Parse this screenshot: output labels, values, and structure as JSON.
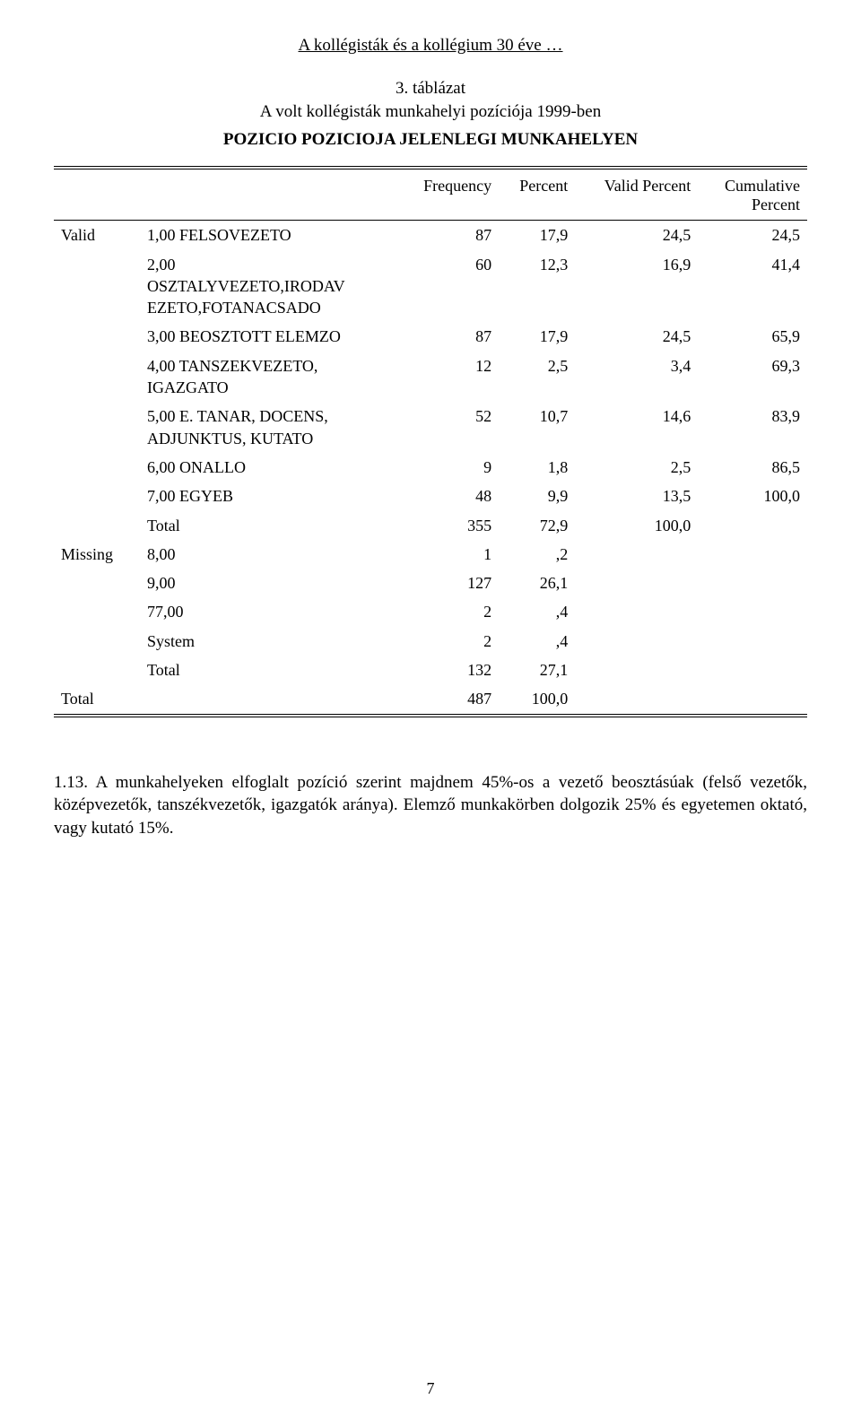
{
  "running_title": "A kollégisták és a kollégium 30 éve …",
  "caption_line1": "3. táblázat",
  "caption_line2": "A volt kollégisták munkahelyi pozíciója 1999-ben",
  "subtitle": "POZICIO  POZICIOJA JELENLEGI MUNKAHELYEN",
  "headers": {
    "c1": "",
    "c2": "",
    "freq": "Frequency",
    "pct": "Percent",
    "vpct": "Valid Percent",
    "cpct_line1": "Cumulative",
    "cpct_line2": "Percent"
  },
  "rows": {
    "valid_stub": "Valid",
    "valid": [
      {
        "label": "1,00  FELSOVEZETO",
        "freq": "87",
        "pct": "17,9",
        "vpct": "24,5",
        "cpct": "24,5"
      },
      {
        "label": "2,00\nOSZTALYVEZETO,IRODAV\nEZETO,FOTANACSADO",
        "freq": "60",
        "pct": "12,3",
        "vpct": "16,9",
        "cpct": "41,4"
      },
      {
        "label": "3,00  BEOSZTOTT ELEMZO",
        "freq": "87",
        "pct": "17,9",
        "vpct": "24,5",
        "cpct": "65,9"
      },
      {
        "label": "4,00  TANSZEKVEZETO,\nIGAZGATO",
        "freq": "12",
        "pct": "2,5",
        "vpct": "3,4",
        "cpct": "69,3"
      },
      {
        "label": "5,00  E. TANAR, DOCENS,\nADJUNKTUS, KUTATO",
        "freq": "52",
        "pct": "10,7",
        "vpct": "14,6",
        "cpct": "83,9"
      },
      {
        "label": "6,00  ONALLO",
        "freq": "9",
        "pct": "1,8",
        "vpct": "2,5",
        "cpct": "86,5"
      },
      {
        "label": "7,00  EGYEB",
        "freq": "48",
        "pct": "9,9",
        "vpct": "13,5",
        "cpct": "100,0"
      },
      {
        "label": "Total",
        "freq": "355",
        "pct": "72,9",
        "vpct": "100,0",
        "cpct": ""
      }
    ],
    "missing_stub": "Missing",
    "missing": [
      {
        "label": "8,00",
        "freq": "1",
        "pct": ",2",
        "vpct": "",
        "cpct": ""
      },
      {
        "label": "9,00",
        "freq": "127",
        "pct": "26,1",
        "vpct": "",
        "cpct": ""
      },
      {
        "label": "77,00",
        "freq": "2",
        "pct": ",4",
        "vpct": "",
        "cpct": ""
      },
      {
        "label": "System",
        "freq": "2",
        "pct": ",4",
        "vpct": "",
        "cpct": ""
      },
      {
        "label": "Total",
        "freq": "132",
        "pct": "27,1",
        "vpct": "",
        "cpct": ""
      }
    ],
    "total_stub": "Total",
    "total": {
      "freq": "487",
      "pct": "100,0",
      "vpct": "",
      "cpct": ""
    }
  },
  "body_text": "1.13. A munkahelyeken elfoglalt pozíció szerint majdnem 45%-os a vezető beosztásúak (felső vezetők, középvezetők, tanszékvezetők, igazgatók aránya). Elemző munkakörben dolgozik 25% és egyetemen oktató, vagy kutató 15%.",
  "page_number": "7"
}
